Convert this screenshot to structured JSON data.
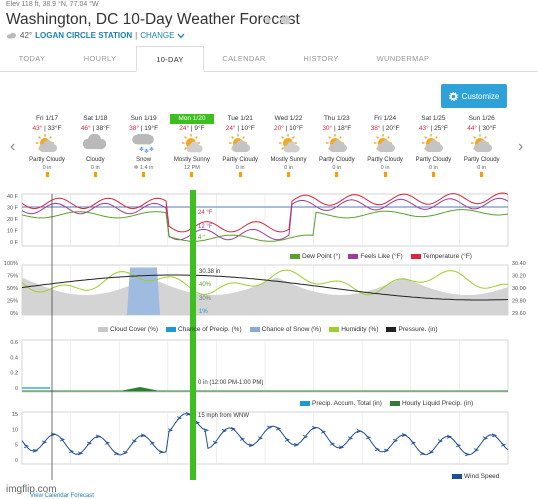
{
  "header": {
    "meta": "Elev 118 ft, 38.9 °N, 77.04 °W",
    "title": "Washington, DC 10-Day Weather Forecast",
    "stars": "★ ★",
    "station_temp": "42°",
    "station_name": "LOGAN CIRCLE STATION",
    "change_label": "CHANGE"
  },
  "tabs": [
    {
      "label": "TODAY"
    },
    {
      "label": "HOURLY"
    },
    {
      "label": "10-DAY"
    },
    {
      "label": "CALENDAR"
    },
    {
      "label": "HISTORY"
    },
    {
      "label": "WUNDERMAP"
    }
  ],
  "customize_label": "Customize",
  "days": [
    {
      "date": "Fri 1/17",
      "hi": "43°",
      "lo": "33°F",
      "icon": "partly-cloudy-icon",
      "cond": "Partly Cloudy",
      "precip": "0 in"
    },
    {
      "date": "Sat 1/18",
      "hi": "46°",
      "lo": "38°F",
      "icon": "cloudy-icon",
      "cond": "Cloudy",
      "precip": "0 in"
    },
    {
      "date": "Sun 1/19",
      "hi": "38°",
      "lo": "19°F",
      "icon": "snow-icon",
      "cond": "Snow",
      "precip": "❄ 1.4 in"
    },
    {
      "date": "Mon 1/20",
      "hi": "24°",
      "lo": "9°F",
      "icon": "mostly-sunny-icon",
      "cond": "Mostly Sunny",
      "precip": "12 PM"
    },
    {
      "date": "Tue 1/21",
      "hi": "24°",
      "lo": "10°F",
      "icon": "partly-cloudy-icon",
      "cond": "Partly Cloudy",
      "precip": "0 in"
    },
    {
      "date": "Wed 1/22",
      "hi": "20°",
      "lo": "10°F",
      "icon": "mostly-sunny-icon",
      "cond": "Mostly Sunny",
      "precip": "0 in"
    },
    {
      "date": "Thu 1/23",
      "hi": "30°",
      "lo": "18°F",
      "icon": "partly-cloudy-icon",
      "cond": "Partly Cloudy",
      "precip": "0 in"
    },
    {
      "date": "Fri 1/24",
      "hi": "38°",
      "lo": "20°F",
      "icon": "partly-cloudy-icon",
      "cond": "Partly Cloudy",
      "precip": "0 in"
    },
    {
      "date": "Sat 1/25",
      "hi": "43°",
      "lo": "25°F",
      "icon": "partly-cloudy-icon",
      "cond": "Partly Cloudy",
      "precip": "0 in"
    },
    {
      "date": "Sun 1/26",
      "hi": "44°",
      "lo": "30°F",
      "icon": "partly-cloudy-icon",
      "cond": "Partly Cloudy",
      "precip": "0 in"
    }
  ],
  "panels": {
    "temp": {
      "yticks": [
        "40 F",
        "30 F",
        "20 F",
        "10 F",
        "0 F"
      ],
      "legend": [
        "Dew Point (°)",
        "Feels Like (°F)",
        "Temperature (°F)"
      ],
      "annotations": [
        "24 °F",
        "12 °F",
        "4 °"
      ]
    },
    "humidity": {
      "yticks_left": [
        "100%",
        "75%",
        "50%",
        "25%",
        "0%"
      ],
      "yticks_right": [
        "30.40",
        "30.20",
        "30.00",
        "29.80",
        "29.60"
      ],
      "legend": [
        "Cloud Cover (%)",
        "Chance of Precip. (%)",
        "Chance of Snow (%)",
        "Humidity (%)",
        "Pressure. (in)"
      ],
      "annotations": [
        "30.38 in",
        "40%",
        "30%",
        "1%"
      ]
    },
    "precip": {
      "yticks": [
        "0.6",
        "0.4",
        "0.2",
        "0"
      ],
      "legend": [
        "Precip. Accum. Total (in)",
        "Hourly Liquid Precip. (in)"
      ],
      "annotation": "0 in (12:00 PM-1:00 PM)"
    },
    "wind": {
      "yticks": [
        "15",
        "10",
        "5",
        "0"
      ],
      "legend": [
        "Wind Speed"
      ],
      "annotation": "15 mph from WNW"
    }
  },
  "colors": {
    "temperature": "#d7263d",
    "feels_like": "#9b3e9b",
    "dew_point": "#5aa02c",
    "humidity": "#9bcf2c",
    "pressure": "#222222",
    "cloud": "#c8c8c8",
    "precip": "#1a9ad6",
    "snow": "#8aa8d8",
    "hourly_liquid": "#2e7d32",
    "wind": "#1f4e99",
    "highlight": "#3cbf1f"
  },
  "footer": {
    "watermark": "imgflip.com",
    "link": "View Calendar Forecast"
  }
}
